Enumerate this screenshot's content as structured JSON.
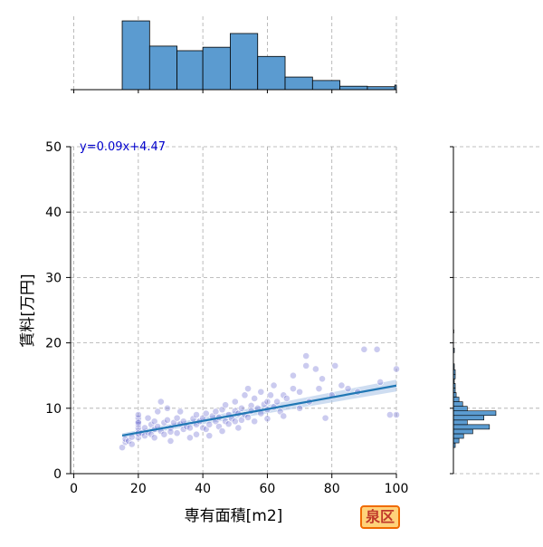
{
  "badge_label": "泉区",
  "colors": {
    "hist_fill": "#5b9bd0",
    "hist_edge": "#000000",
    "scatter_point": "#6a6ad0",
    "fit_line": "#1f77b4",
    "fit_band": "#aec7e8",
    "equation_text": "#0000cc",
    "grid": "#aaaaaa",
    "badge_bg": "#ffd27a",
    "badge_border": "#f06a00",
    "badge_text": "#c0392b"
  },
  "chart_data": [
    {
      "type": "scatter",
      "xlabel": "専有面積[m2]",
      "ylabel": "賃料[万円]",
      "xlim": [
        -1,
        100
      ],
      "ylim": [
        0,
        50
      ],
      "x_ticks": [
        0,
        20,
        40,
        60,
        80,
        100
      ],
      "y_ticks": [
        0,
        10,
        20,
        30,
        40,
        50
      ],
      "grid": true,
      "annotation": "y=0.09x+4.47",
      "regression": {
        "slope": 0.09,
        "intercept": 4.47,
        "x_range": [
          15,
          100
        ]
      },
      "points": [
        [
          15,
          4.0
        ],
        [
          16,
          4.8
        ],
        [
          16,
          5.3
        ],
        [
          17,
          5.0
        ],
        [
          18,
          5.6
        ],
        [
          18,
          4.5
        ],
        [
          20,
          5.5
        ],
        [
          20,
          6.0
        ],
        [
          20,
          6.5
        ],
        [
          20,
          7.0
        ],
        [
          20,
          7.5
        ],
        [
          20,
          8.0
        ],
        [
          20,
          8.5
        ],
        [
          20,
          9.0
        ],
        [
          20,
          6.2
        ],
        [
          20,
          7.8
        ],
        [
          21,
          6.2
        ],
        [
          22,
          7.0
        ],
        [
          22,
          5.8
        ],
        [
          23,
          8.5
        ],
        [
          23,
          6.3
        ],
        [
          24,
          7.5
        ],
        [
          24,
          6.0
        ],
        [
          25,
          8.0
        ],
        [
          25,
          5.5
        ],
        [
          25,
          6.8
        ],
        [
          26,
          9.5
        ],
        [
          26,
          7.2
        ],
        [
          27,
          11.0
        ],
        [
          27,
          6.5
        ],
        [
          28,
          7.8
        ],
        [
          28,
          6.0
        ],
        [
          29,
          8.2
        ],
        [
          29,
          10.0
        ],
        [
          30,
          7.0
        ],
        [
          30,
          5.0
        ],
        [
          30,
          6.4
        ],
        [
          31,
          7.8
        ],
        [
          32,
          6.2
        ],
        [
          32,
          8.5
        ],
        [
          33,
          7.6
        ],
        [
          33,
          9.5
        ],
        [
          34,
          6.8
        ],
        [
          34,
          8.0
        ],
        [
          35,
          7.2
        ],
        [
          36,
          5.5
        ],
        [
          36,
          7.0
        ],
        [
          37,
          8.4
        ],
        [
          38,
          6.0
        ],
        [
          38,
          7.5
        ],
        [
          38,
          9.0
        ],
        [
          39,
          8.0
        ],
        [
          40,
          7.0
        ],
        [
          40,
          8.5
        ],
        [
          41,
          6.8
        ],
        [
          41,
          9.2
        ],
        [
          42,
          7.5
        ],
        [
          42,
          5.8
        ],
        [
          43,
          8.8
        ],
        [
          44,
          8.0
        ],
        [
          44,
          9.5
        ],
        [
          45,
          7.2
        ],
        [
          45,
          8.6
        ],
        [
          46,
          9.8
        ],
        [
          46,
          6.5
        ],
        [
          47,
          8.0
        ],
        [
          47,
          10.5
        ],
        [
          48,
          7.6
        ],
        [
          48,
          9.0
        ],
        [
          49,
          8.4
        ],
        [
          50,
          8.0
        ],
        [
          50,
          9.6
        ],
        [
          50,
          11.0
        ],
        [
          51,
          7.0
        ],
        [
          51,
          9.2
        ],
        [
          52,
          10.0
        ],
        [
          52,
          8.2
        ],
        [
          53,
          12.0
        ],
        [
          53,
          9.0
        ],
        [
          54,
          8.6
        ],
        [
          54,
          13.0
        ],
        [
          55,
          10.4
        ],
        [
          55,
          9.6
        ],
        [
          56,
          8.0
        ],
        [
          56,
          11.5
        ],
        [
          57,
          10.0
        ],
        [
          58,
          9.2
        ],
        [
          58,
          12.5
        ],
        [
          59,
          10.6
        ],
        [
          60,
          9.8
        ],
        [
          60,
          8.4
        ],
        [
          60,
          11.0
        ],
        [
          61,
          12.0
        ],
        [
          62,
          10.2
        ],
        [
          62,
          13.5
        ],
        [
          63,
          11.0
        ],
        [
          64,
          9.5
        ],
        [
          65,
          12.0
        ],
        [
          65,
          8.8
        ],
        [
          66,
          11.5
        ],
        [
          68,
          13.0
        ],
        [
          68,
          15.0
        ],
        [
          70,
          10.0
        ],
        [
          70,
          12.5
        ],
        [
          72,
          16.5
        ],
        [
          72,
          18.0
        ],
        [
          73,
          11.0
        ],
        [
          75,
          16.0
        ],
        [
          76,
          13.0
        ],
        [
          77,
          14.5
        ],
        [
          78,
          8.5
        ],
        [
          80,
          12.0
        ],
        [
          81,
          16.5
        ],
        [
          83,
          13.5
        ],
        [
          85,
          13.0
        ],
        [
          88,
          12.5
        ],
        [
          90,
          19.0
        ],
        [
          94,
          19.0
        ],
        [
          95,
          14.0
        ],
        [
          98,
          9.0
        ],
        [
          100,
          16.0
        ],
        [
          100,
          9.0
        ]
      ]
    },
    {
      "type": "bar",
      "orientation": "vertical",
      "xlim": [
        -1,
        100
      ],
      "bins": [
        {
          "x0": 15,
          "x1": 23.5,
          "count": 30
        },
        {
          "x0": 23.5,
          "x1": 32,
          "count": 19
        },
        {
          "x0": 32,
          "x1": 40,
          "count": 17
        },
        {
          "x0": 40,
          "x1": 48.5,
          "count": 18.5
        },
        {
          "x0": 48.5,
          "x1": 57,
          "count": 24.5
        },
        {
          "x0": 57,
          "x1": 65.5,
          "count": 14.5
        },
        {
          "x0": 65.5,
          "x1": 74,
          "count": 5.5
        },
        {
          "x0": 74,
          "x1": 82.5,
          "count": 4
        },
        {
          "x0": 82.5,
          "x1": 91,
          "count": 1.5
        },
        {
          "x0": 91,
          "x1": 99.5,
          "count": 1.3
        },
        {
          "x0": 99.5,
          "x1": 100,
          "count": 2
        }
      ],
      "max_count": 32
    },
    {
      "type": "bar",
      "orientation": "horizontal",
      "ylim": [
        0,
        50
      ],
      "bins": [
        {
          "y0": 4.0,
          "y1": 4.7,
          "count": 2
        },
        {
          "y0": 4.7,
          "y1": 5.4,
          "count": 6
        },
        {
          "y0": 5.4,
          "y1": 6.1,
          "count": 11
        },
        {
          "y0": 6.1,
          "y1": 6.8,
          "count": 21
        },
        {
          "y0": 6.8,
          "y1": 7.5,
          "count": 39
        },
        {
          "y0": 7.5,
          "y1": 8.2,
          "count": 15
        },
        {
          "y0": 8.2,
          "y1": 8.9,
          "count": 33
        },
        {
          "y0": 8.9,
          "y1": 9.6,
          "count": 46
        },
        {
          "y0": 9.6,
          "y1": 10.3,
          "count": 15
        },
        {
          "y0": 10.3,
          "y1": 11.0,
          "count": 10
        },
        {
          "y0": 11.0,
          "y1": 11.7,
          "count": 6
        },
        {
          "y0": 11.7,
          "y1": 12.4,
          "count": 3
        },
        {
          "y0": 12.4,
          "y1": 13.1,
          "count": 2
        },
        {
          "y0": 13.1,
          "y1": 13.8,
          "count": 2
        },
        {
          "y0": 13.8,
          "y1": 14.5,
          "count": 1
        },
        {
          "y0": 14.5,
          "y1": 15.2,
          "count": 2
        },
        {
          "y0": 15.2,
          "y1": 15.9,
          "count": 2
        },
        {
          "y0": 16.0,
          "y1": 16.8,
          "count": 1
        },
        {
          "y0": 18.5,
          "y1": 19.2,
          "count": 1
        },
        {
          "y0": 21.5,
          "y1": 22.0,
          "count": 0.5
        }
      ],
      "max_count": 95
    }
  ]
}
